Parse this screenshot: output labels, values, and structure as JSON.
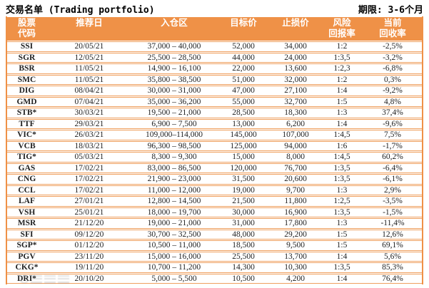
{
  "header": {
    "title": "交易名单 (Trading portfolio)",
    "period": "期限: 3-6个月"
  },
  "table": {
    "columns": [
      {
        "key": "code",
        "label": "股票\n代码"
      },
      {
        "key": "date",
        "label": "推荐日"
      },
      {
        "key": "entry",
        "label": "入仓区"
      },
      {
        "key": "target",
        "label": "目标价"
      },
      {
        "key": "stop",
        "label": "止损价"
      },
      {
        "key": "risk",
        "label": "风险\n回报率"
      },
      {
        "key": "current",
        "label": "当前\n回收率"
      }
    ],
    "rows": [
      {
        "code": "SSI",
        "date": "20/05/21",
        "entry": "37,000 – 40,000",
        "target": "52,000",
        "stop": "34,000",
        "risk": "1:2",
        "current": "-2,5%"
      },
      {
        "code": "SGR",
        "date": "12/05/21",
        "entry": "25,500 – 28,500",
        "target": "44,000",
        "stop": "24,000",
        "risk": "1:3,5",
        "current": "-3,2%"
      },
      {
        "code": "BSR",
        "date": "11/05/21",
        "entry": "14,900 – 16,100",
        "target": "22,000",
        "stop": "13,600",
        "risk": "1:2,3",
        "current": "-6,8%"
      },
      {
        "code": "SMC",
        "date": "11/05/21",
        "entry": "35,800 – 38,500",
        "target": "51,000",
        "stop": "32,000",
        "risk": "1:2",
        "current": "0,3%"
      },
      {
        "code": "DIG",
        "date": "08/04/21",
        "entry": "30,000 – 31,000",
        "target": "47,000",
        "stop": "27,100",
        "risk": "1:4",
        "current": "-9,2%"
      },
      {
        "code": "GMD",
        "date": "07/04/21",
        "entry": "35,000 – 36,200",
        "target": "55,000",
        "stop": "32,700",
        "risk": "1:5",
        "current": "4,8%"
      },
      {
        "code": "STB*",
        "date": "30/03/21",
        "entry": "19,500 – 21,000",
        "target": "28,500",
        "stop": "18,300",
        "risk": "1:3",
        "current": "37,4%"
      },
      {
        "code": "TTF",
        "date": "29/03/21",
        "entry": "6,900 – 7,500",
        "target": "13,000",
        "stop": "6,200",
        "risk": "1:4",
        "current": "-9,6%"
      },
      {
        "code": "VIC*",
        "date": "26/03/21",
        "entry": "109,000–114,000",
        "target": "145,000",
        "stop": "107,000",
        "risk": "1:4,5",
        "current": "7,5%"
      },
      {
        "code": "VCB",
        "date": "18/03/21",
        "entry": "96,300 – 98,500",
        "target": "125,000",
        "stop": "94,000",
        "risk": "1:6",
        "current": "-1,7%"
      },
      {
        "code": "TIG*",
        "date": "05/03/21",
        "entry": "8,300 – 9,300",
        "target": "15,000",
        "stop": "8,000",
        "risk": "1:4,5",
        "current": "60,2%"
      },
      {
        "code": "GAS",
        "date": "17/02/21",
        "entry": "83,000 – 86,500",
        "target": "120,000",
        "stop": "76,700",
        "risk": "1:3,5",
        "current": "-6,4%"
      },
      {
        "code": "CNG",
        "date": "17/02/21",
        "entry": "21,900 – 23,000",
        "target": "31,500",
        "stop": "20,600",
        "risk": "1:3,5",
        "current": "-6,1%"
      },
      {
        "code": "CCL",
        "date": "17/02/21",
        "entry": "11,000 – 12,000",
        "target": "19,000",
        "stop": "9,700",
        "risk": "1:3",
        "current": "2,9%"
      },
      {
        "code": "LAF",
        "date": "27/01/21",
        "entry": "12,800 – 14,500",
        "target": "21,500",
        "stop": "11,800",
        "risk": "1:2,5",
        "current": "-3,5%"
      },
      {
        "code": "VSH",
        "date": "25/01/21",
        "entry": "18,000 – 19,700",
        "target": "30,000",
        "stop": "16,900",
        "risk": "1:3,5",
        "current": "-1,5%"
      },
      {
        "code": "MSR",
        "date": "21/12/20",
        "entry": "19,000 – 21,000",
        "target": "31,000",
        "stop": "17,800",
        "risk": "1:3",
        "current": "-11,4%"
      },
      {
        "code": "SFI",
        "date": "09/12/20",
        "entry": "30,700 – 32,500",
        "target": "48,000",
        "stop": "29,200",
        "risk": "1:5",
        "current": "12,6%"
      },
      {
        "code": "SGP*",
        "date": "01/12/20",
        "entry": "10,500 – 11,000",
        "target": "18,500",
        "stop": "9,500",
        "risk": "1:5",
        "current": "69,1%"
      },
      {
        "code": "PGV",
        "date": "23/11/20",
        "entry": "15,000 – 16,000",
        "target": "25,500",
        "stop": "13,700",
        "risk": "1:4",
        "current": "5,6%"
      },
      {
        "code": "CKG*",
        "date": "19/11/20",
        "entry": "10,700 – 11,200",
        "target": "14,300",
        "stop": "10,300",
        "risk": "1:3,5",
        "current": "85,3%"
      },
      {
        "code": "DRI*",
        "date": "20/10/20",
        "entry": "5,000 – 5,500",
        "target": "10,500",
        "stop": "4,200",
        "risk": "1:4",
        "current": "76,4%"
      }
    ]
  }
}
